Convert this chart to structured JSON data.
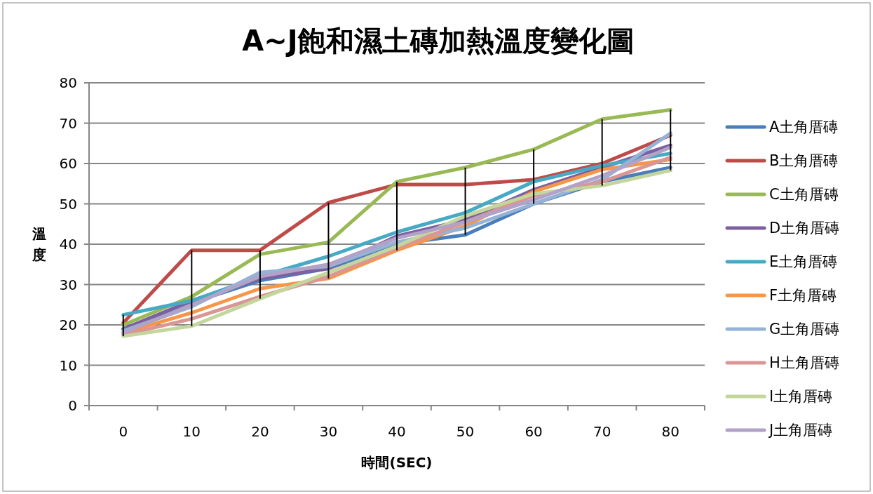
{
  "chart_data": {
    "type": "line",
    "title": "A~J飽和濕土磚加熱溫度變化圖",
    "xlabel": "時間(SEC)",
    "ylabel": "溫度",
    "categories": [
      "0",
      "10",
      "20",
      "30",
      "40",
      "50",
      "60",
      "70",
      "80"
    ],
    "ylim": [
      0,
      80
    ],
    "yticks": [
      0,
      10,
      20,
      30,
      40,
      50,
      60,
      70,
      80
    ],
    "grid": "y",
    "legend": "right",
    "marker": "none",
    "line_style": "solid",
    "series": [
      {
        "name": "A土角厝磚",
        "color": "#4a7ebb",
        "values": [
          19,
          25.5,
          31,
          34,
          40,
          42.3,
          50,
          55.5,
          59
        ]
      },
      {
        "name": "B土角厝磚",
        "color": "#be4b48",
        "values": [
          20.5,
          38.5,
          38.5,
          50.3,
          54.8,
          54.8,
          56,
          60,
          67
        ]
      },
      {
        "name": "C土角厝磚",
        "color": "#98b954",
        "values": [
          20,
          27,
          37.5,
          40.5,
          55.5,
          59,
          63.5,
          71,
          73.3
        ]
      },
      {
        "name": "D土角厝磚",
        "color": "#7d60a0",
        "values": [
          19,
          26,
          31.5,
          34,
          42,
          46,
          53.5,
          59,
          64.5
        ]
      },
      {
        "name": "E土角厝磚",
        "color": "#46aac5",
        "values": [
          22.5,
          26,
          32,
          37,
          43,
          47.8,
          55.5,
          59.5,
          62.5
        ]
      },
      {
        "name": "F土角厝磚",
        "color": "#f79646",
        "values": [
          18,
          23,
          29,
          31.5,
          38.5,
          44.5,
          53,
          58.5,
          61
        ]
      },
      {
        "name": "G土角厝磚",
        "color": "#95b3d7",
        "values": [
          18.5,
          24.5,
          33,
          34.5,
          40.5,
          44,
          50,
          56,
          67.5
        ]
      },
      {
        "name": "H土角厝磚",
        "color": "#d99694",
        "values": [
          17.5,
          21.5,
          27,
          32,
          39,
          45.5,
          52,
          55.5,
          61.5
        ]
      },
      {
        "name": "I土角厝磚",
        "color": "#c3d69b",
        "values": [
          17.2,
          19.7,
          26.5,
          33,
          39.5,
          47,
          52.5,
          54.5,
          58.3
        ]
      },
      {
        "name": "J土角厝磚",
        "color": "#b3a2c7",
        "values": [
          18,
          25,
          32,
          35,
          41.5,
          45.5,
          51,
          57,
          64
        ]
      },
      {
        "type": "line",
        "color": "#000000",
        "x": [
          "0",
          "0"
        ],
        "values": [
          17.2,
          22.5
        ]
      },
      {
        "type": "line",
        "color": "#000000",
        "x": [
          "10",
          "10"
        ],
        "values": [
          19.7,
          38.5
        ]
      },
      {
        "type": "line",
        "color": "#000000",
        "x": [
          "20",
          "20"
        ],
        "values": [
          26.5,
          38.5
        ]
      },
      {
        "type": "line",
        "color": "#000000",
        "x": [
          "30",
          "30"
        ],
        "values": [
          31.5,
          50.3
        ]
      },
      {
        "type": "line",
        "color": "#000000",
        "x": [
          "40",
          "40"
        ],
        "values": [
          38.5,
          55.5
        ]
      },
      {
        "type": "line",
        "color": "#000000",
        "x": [
          "50",
          "50"
        ],
        "values": [
          42.3,
          59
        ]
      },
      {
        "type": "line",
        "color": "#000000",
        "x": [
          "60",
          "60"
        ],
        "values": [
          50,
          63.5
        ]
      },
      {
        "type": "line",
        "color": "#000000",
        "x": [
          "70",
          "70"
        ],
        "values": [
          54.5,
          71
        ]
      },
      {
        "type": "line",
        "color": "#000000",
        "x": [
          "80",
          "80"
        ],
        "values": [
          58.3,
          73.3
        ]
      }
    ]
  }
}
